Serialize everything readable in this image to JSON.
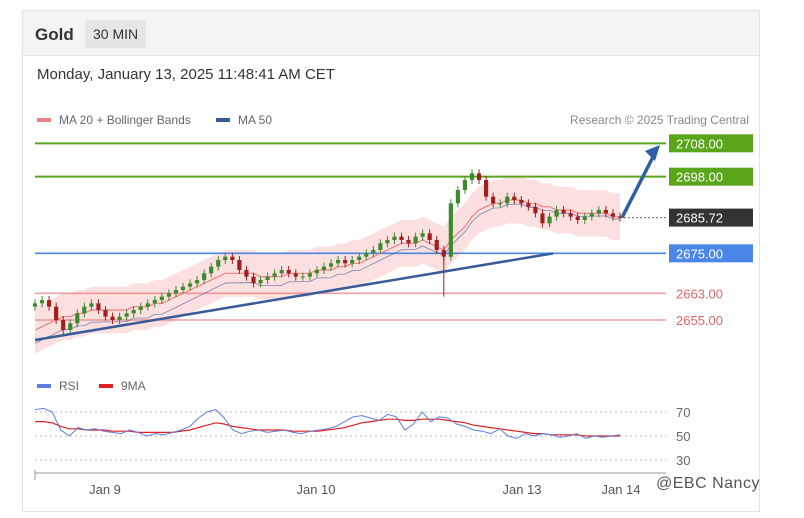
{
  "header": {
    "symbol": "Gold",
    "timeframe": "30 MIN"
  },
  "timestamp": "Monday, January 13, 2025 11:48:41 AM CET",
  "legend_main": [
    {
      "label": "MA 20 + Bollinger Bands",
      "color": "#f08080"
    },
    {
      "label": "MA 50",
      "color": "#3a5b9a"
    }
  ],
  "credit": "Research © 2025 Trading Central",
  "legend_rsi": [
    {
      "label": "RSI",
      "color": "#5b7fe0"
    },
    {
      "label": "9MA",
      "color": "#e02020"
    }
  ],
  "watermark": "@EBC  Nancy",
  "colors": {
    "resistance": "#5aa61a",
    "pivot": "#4a86e8",
    "support": "#e06666",
    "price": "#333333",
    "arrow": "#2e5fa3",
    "up_candle": "#3c8a2e",
    "down_candle": "#a02020"
  },
  "chart_data": {
    "type": "candlestick",
    "price_ylim": [
      2643,
      2712
    ],
    "levels": [
      {
        "value": 2708.0,
        "label": "2708.00",
        "kind": "resistance"
      },
      {
        "value": 2698.0,
        "label": "2698.00",
        "kind": "resistance"
      },
      {
        "value": 2685.72,
        "label": "2685.72",
        "kind": "current"
      },
      {
        "value": 2675.0,
        "label": "2675.00",
        "kind": "pivot"
      },
      {
        "value": 2663.0,
        "label": "2663.00",
        "kind": "support"
      },
      {
        "value": 2655.0,
        "label": "2655.00",
        "kind": "support"
      }
    ],
    "x_labels": [
      "Jan 9",
      "Jan 10",
      "Jan 13",
      "Jan 14"
    ],
    "closes": [
      2660,
      2661,
      2659,
      2655,
      2652,
      2654,
      2657,
      2659,
      2660,
      2658,
      2656,
      2655,
      2656,
      2657,
      2658,
      2659,
      2660,
      2661,
      2662,
      2663,
      2664,
      2665,
      2666,
      2667,
      2669,
      2671,
      2673,
      2674,
      2673,
      2670,
      2668,
      2666,
      2667,
      2668,
      2669,
      2670,
      2669,
      2668,
      2668,
      2669,
      2670,
      2671,
      2672,
      2673,
      2672,
      2673,
      2674,
      2675,
      2676,
      2678,
      2679,
      2680,
      2679,
      2678,
      2680,
      2681,
      2679,
      2676,
      2674,
      2690,
      2694,
      2697,
      2699,
      2697,
      2692,
      2690,
      2690,
      2692,
      2691,
      2690,
      2689,
      2687,
      2684,
      2686,
      2688,
      2687,
      2686,
      2685,
      2686,
      2687,
      2688,
      2687,
      2686,
      2685.72
    ],
    "ma20": [
      2652,
      2653,
      2654,
      2655,
      2656,
      2656,
      2657,
      2657,
      2658,
      2658,
      2658,
      2658,
      2658,
      2658,
      2659,
      2659,
      2659,
      2660,
      2660,
      2661,
      2662,
      2663,
      2664,
      2665,
      2666,
      2667,
      2668,
      2669,
      2669,
      2669,
      2669,
      2669,
      2668,
      2668,
      2668,
      2668,
      2669,
      2669,
      2669,
      2669,
      2670,
      2670,
      2670,
      2671,
      2671,
      2672,
      2672,
      2673,
      2674,
      2675,
      2676,
      2677,
      2678,
      2678,
      2678,
      2679,
      2678,
      2677,
      2676,
      2679,
      2681,
      2683,
      2686,
      2688,
      2689,
      2690,
      2690,
      2691,
      2691,
      2691,
      2690,
      2690,
      2689,
      2689,
      2688,
      2688,
      2688,
      2687,
      2687,
      2687,
      2687,
      2687,
      2686,
      2686
    ],
    "trendline": {
      "from": 2649,
      "to": 2675
    },
    "rsi": [
      72,
      73,
      70,
      55,
      50,
      57,
      55,
      56,
      54,
      53,
      52,
      55,
      53,
      50,
      52,
      51,
      53,
      55,
      58,
      65,
      70,
      72,
      65,
      55,
      52,
      54,
      55,
      53,
      54,
      55,
      53,
      52,
      54,
      55,
      56,
      58,
      62,
      66,
      67,
      65,
      63,
      68,
      66,
      55,
      60,
      70,
      62,
      66,
      65,
      60,
      58,
      55,
      54,
      52,
      56,
      50,
      48,
      52,
      50,
      52,
      51,
      49,
      50,
      52,
      48,
      50,
      49,
      50,
      51
    ],
    "rsi_ma": [
      62,
      62,
      61,
      58,
      56,
      56,
      55,
      55,
      55,
      54,
      54,
      54,
      53,
      53,
      53,
      53,
      53,
      54,
      55,
      57,
      59,
      61,
      60,
      58,
      57,
      56,
      55,
      55,
      55,
      55,
      54,
      54,
      54,
      54,
      55,
      56,
      57,
      59,
      61,
      62,
      63,
      64,
      64,
      63,
      63,
      64,
      64,
      64,
      63,
      62,
      61,
      59,
      58,
      57,
      56,
      55,
      54,
      53,
      52,
      52,
      51,
      51,
      51,
      51,
      50,
      50,
      50,
      50,
      50
    ],
    "rsi_ylim": [
      25,
      80
    ],
    "rsi_levels": [
      {
        "value": 70,
        "label": "70"
      },
      {
        "value": 50,
        "label": "50"
      },
      {
        "value": 30,
        "label": "30"
      }
    ]
  }
}
